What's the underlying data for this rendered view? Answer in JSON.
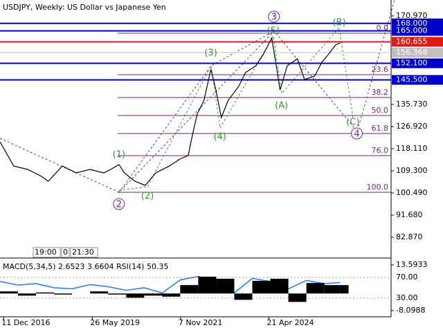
{
  "chart_data": [
    {
      "type": "line",
      "title": "USDJPY, Weekly:  US Dollar vs Japanese Yen",
      "color": "#000000",
      "x": [
        2016.84,
        2017.22,
        2017.61,
        2017.99,
        2018.18,
        2018.57,
        2018.95,
        2019.34,
        2019.72,
        2019.91,
        2020.14,
        2020.29,
        2020.58,
        2020.87,
        2021.16,
        2021.54,
        2021.83,
        2022.06,
        2022.18,
        2022.31,
        2022.5,
        2022.69,
        2022.83,
        2022.98,
        2023.17,
        2023.46,
        2023.65,
        2023.94,
        2024.13,
        2024.38,
        2024.52,
        2024.61,
        2024.81,
        2025.09,
        2025.29,
        2025.57,
        2025.77,
        2025.96,
        2026.15,
        2026.28
      ],
      "values": [
        120.86,
        111.23,
        109.85,
        107.1,
        105.17,
        111.23,
        108.48,
        109.85,
        108.48,
        109.85,
        111.78,
        108.48,
        105.17,
        103.52,
        108.48,
        111.23,
        113.98,
        115.36,
        123.62,
        131.88,
        137.38,
        149.77,
        141.51,
        130.5,
        137.38,
        142.89,
        148.39,
        151.15,
        155.28,
        162.16,
        149.77,
        141.51,
        151.15,
        153.9,
        145.64,
        147.02,
        152.52,
        155.83,
        159.41,
        160.23
      ],
      "xlim": [
        2016.84,
        2027.69
      ],
      "ylim": [
        74.88,
        177.3
      ],
      "xticks": [
        {
          "value": 2016.94,
          "label": "11 Dec 2016"
        },
        {
          "value": 2019.4,
          "label": "26 May 2019"
        },
        {
          "value": 2021.85,
          "label": "7 Nov 2021"
        },
        {
          "value": 2024.3,
          "label": "21 Apr 2024"
        }
      ],
      "yticks": [
        {
          "value": 170.97,
          "label": "170.970"
        },
        {
          "value": 135.73,
          "label": "135.730"
        },
        {
          "value": 126.92,
          "label": "126.920"
        },
        {
          "value": 118.11,
          "label": "118.110"
        },
        {
          "value": 109.3,
          "label": "109.300"
        },
        {
          "value": 100.49,
          "label": "100.490"
        },
        {
          "value": 91.68,
          "label": "91.680"
        },
        {
          "value": 82.87,
          "label": "82.870"
        }
      ],
      "levels": [
        {
          "value": 168,
          "label": "168.000",
          "color": "#0000c8"
        },
        {
          "value": 165,
          "label": "165.000",
          "color": "#0000c8"
        },
        {
          "value": 160.655,
          "label": "160.655",
          "color": "#e01818"
        },
        {
          "value": 156.368,
          "label": "156.368",
          "color": "#c0c0c0"
        },
        {
          "value": 152.1,
          "label": "152.100",
          "color": "#0000c8"
        },
        {
          "value": 145.5,
          "label": "145.500",
          "color": "#0000c8"
        }
      ],
      "fib_levels": [
        {
          "value": 164.09,
          "label": "0.0"
        },
        {
          "value": 147.57,
          "label": "23.6"
        },
        {
          "value": 138.48,
          "label": "38.2"
        },
        {
          "value": 131.32,
          "label": "50.0"
        },
        {
          "value": 124.17,
          "label": "61.8"
        },
        {
          "value": 115.36,
          "label": "76.0"
        },
        {
          "value": 100.77,
          "label": "100.0"
        }
      ],
      "fib_color": "#7a1f6e",
      "annotations": [
        {
          "text": "(1)",
          "x": 2020.14,
          "y": 115.63,
          "style": "wave"
        },
        {
          "text": "(2)",
          "x": 2020.93,
          "y": 99.12,
          "style": "wave"
        },
        {
          "text": "(3)",
          "x": 2022.69,
          "y": 156.1,
          "style": "wave"
        },
        {
          "text": "(4)",
          "x": 2022.94,
          "y": 122.79,
          "style": "wave"
        },
        {
          "text": "(5)",
          "x": 2024.42,
          "y": 164.91,
          "style": "wave"
        },
        {
          "text": "(A)",
          "x": 2024.65,
          "y": 135.18,
          "style": "wave"
        },
        {
          "text": "(B)",
          "x": 2026.25,
          "y": 168.22,
          "style": "wave"
        },
        {
          "text": "(C)",
          "x": 2026.63,
          "y": 128.57,
          "style": "wave"
        },
        {
          "text": "2",
          "x": 2020.14,
          "y": 96.09,
          "style": "circle"
        },
        {
          "text": "3",
          "x": 2024.44,
          "y": 170.69,
          "style": "circle"
        },
        {
          "text": "4",
          "x": 2026.74,
          "y": 124.17,
          "style": "circle"
        }
      ],
      "time_markers": [
        "19:00",
        "0",
        "21:30"
      ]
    },
    {
      "type": "indicator",
      "title": "MACD(5,34,5) 2.6523 3.6604 RSI(14) 50.35",
      "x": [
        2016.84,
        2017.34,
        2017.84,
        2018.34,
        2018.84,
        2019.34,
        2019.84,
        2020.34,
        2020.84,
        2021.34,
        2021.84,
        2022.34,
        2022.84,
        2023.34,
        2023.84,
        2024.34,
        2024.84,
        2025.34,
        2025.84,
        2026.28
      ],
      "series": [
        {
          "color": "#1e78ff",
          "values": [
            62,
            55,
            58,
            50,
            48,
            56,
            52,
            45,
            50,
            40,
            65,
            72,
            60,
            40,
            68,
            62,
            48,
            64,
            58,
            60
          ]
        },
        {
          "color": "#000000",
          "axis": "y2",
          "values": [
            1,
            -1,
            0.5,
            -0.5,
            0,
            1,
            -0.5,
            -2,
            -1,
            -1.5,
            4,
            8,
            7,
            -3,
            6,
            7,
            -4,
            5,
            4,
            4
          ]
        }
      ],
      "xlim": [
        2016.84,
        2027.69
      ],
      "ylim": [
        -3.33,
        103.33
      ],
      "y2lim": [
        -10.42,
        15.9
      ],
      "yticks": [
        {
          "value": 70,
          "label": "70.00"
        },
        {
          "value": 30,
          "label": "30.00"
        }
      ],
      "y2ticks": [
        13.5933,
        -8.0988
      ]
    }
  ]
}
